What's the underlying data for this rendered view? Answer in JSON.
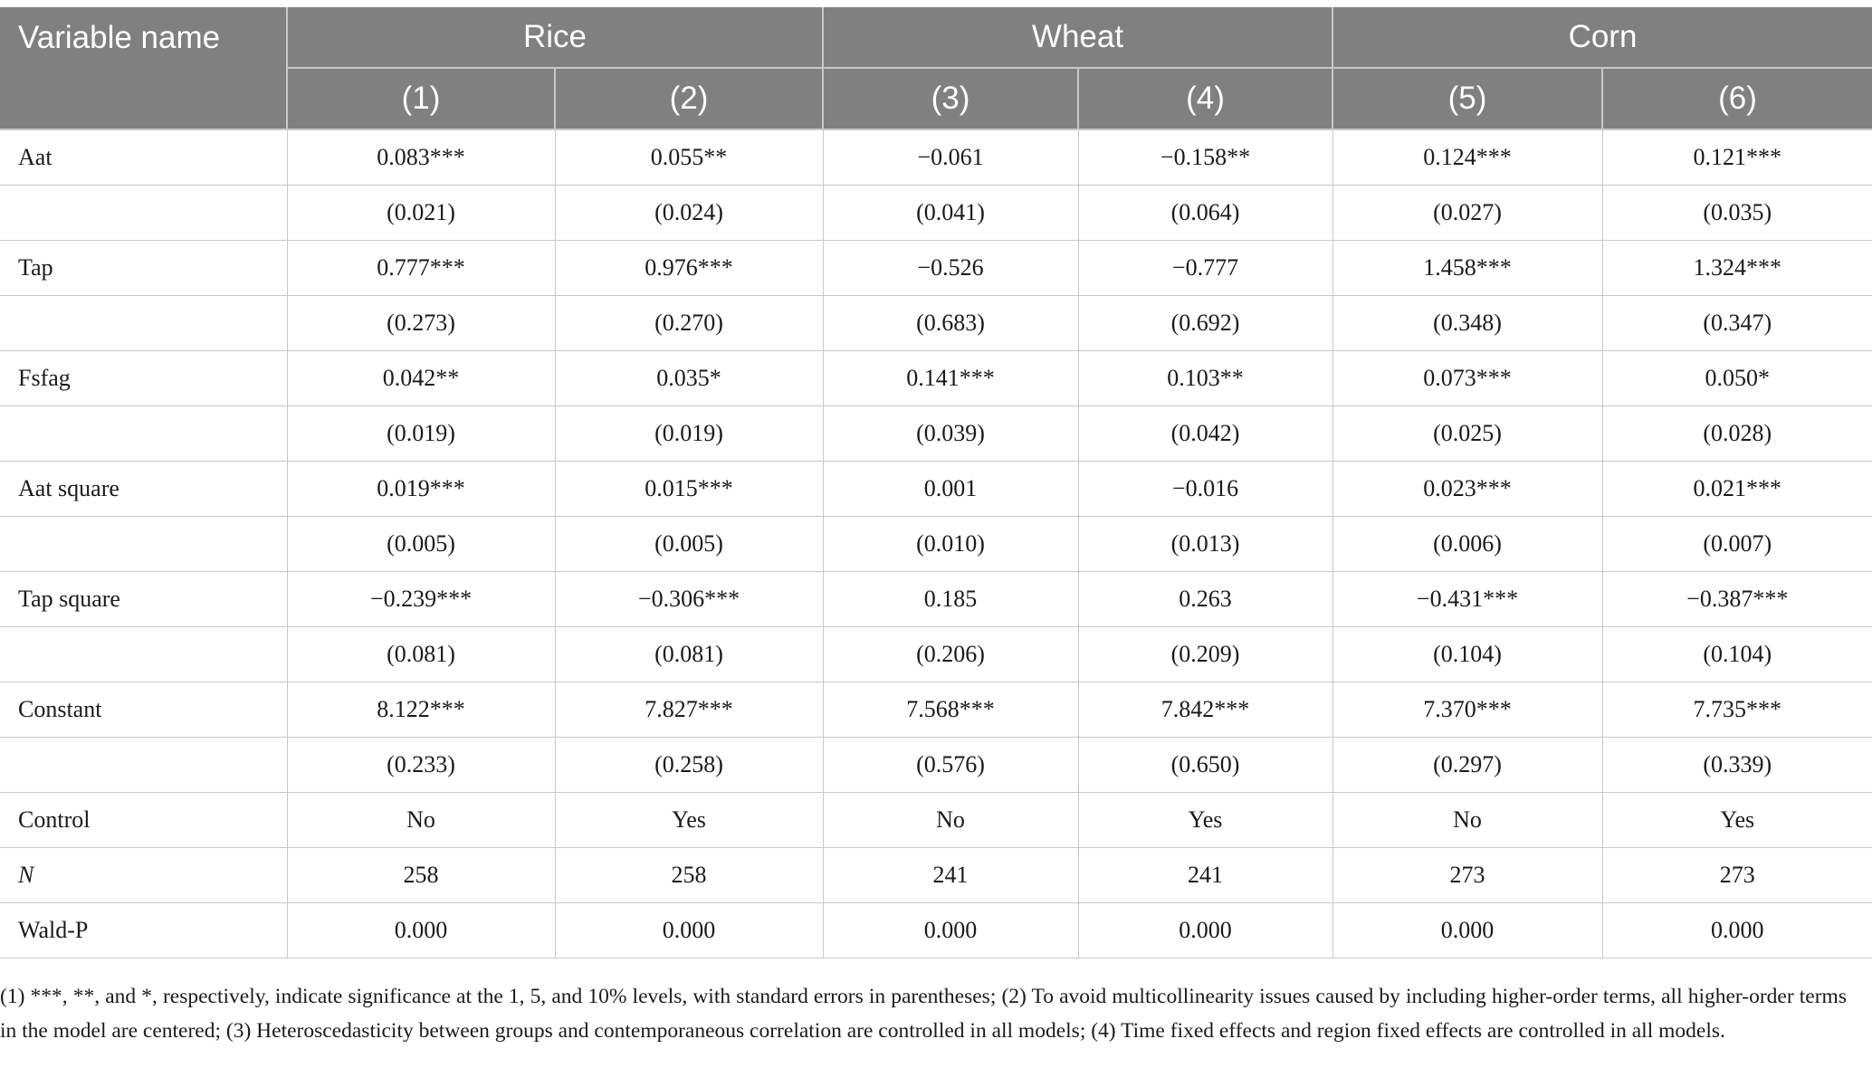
{
  "table": {
    "header_label": "Variable name",
    "groups": [
      {
        "label": "Rice",
        "span": 2
      },
      {
        "label": "Wheat",
        "span": 2
      },
      {
        "label": "Corn",
        "span": 2
      }
    ],
    "columns": [
      "(1)",
      "(2)",
      "(3)",
      "(4)",
      "(5)",
      "(6)"
    ],
    "rows": [
      {
        "label": "Aat",
        "italic": false,
        "cells": [
          "0.083***",
          "0.055**",
          "−0.061",
          "−0.158**",
          "0.124***",
          "0.121***"
        ]
      },
      {
        "label": "",
        "italic": false,
        "cells": [
          "(0.021)",
          "(0.024)",
          "(0.041)",
          "(0.064)",
          "(0.027)",
          "(0.035)"
        ]
      },
      {
        "label": "Tap",
        "italic": false,
        "cells": [
          "0.777***",
          "0.976***",
          "−0.526",
          "−0.777",
          "1.458***",
          "1.324***"
        ]
      },
      {
        "label": "",
        "italic": false,
        "cells": [
          "(0.273)",
          "(0.270)",
          "(0.683)",
          "(0.692)",
          "(0.348)",
          "(0.347)"
        ]
      },
      {
        "label": "Fsfag",
        "italic": false,
        "cells": [
          "0.042**",
          "0.035*",
          "0.141***",
          "0.103**",
          "0.073***",
          "0.050*"
        ]
      },
      {
        "label": "",
        "italic": false,
        "cells": [
          "(0.019)",
          "(0.019)",
          "(0.039)",
          "(0.042)",
          "(0.025)",
          "(0.028)"
        ]
      },
      {
        "label": "Aat square",
        "italic": false,
        "cells": [
          "0.019***",
          "0.015***",
          "0.001",
          "−0.016",
          "0.023***",
          "0.021***"
        ]
      },
      {
        "label": "",
        "italic": false,
        "cells": [
          "(0.005)",
          "(0.005)",
          "(0.010)",
          "(0.013)",
          "(0.006)",
          "(0.007)"
        ]
      },
      {
        "label": "Tap square",
        "italic": false,
        "cells": [
          "−0.239***",
          "−0.306***",
          "0.185",
          "0.263",
          "−0.431***",
          "−0.387***"
        ]
      },
      {
        "label": "",
        "italic": false,
        "cells": [
          "(0.081)",
          "(0.081)",
          "(0.206)",
          "(0.209)",
          "(0.104)",
          "(0.104)"
        ]
      },
      {
        "label": "Constant",
        "italic": false,
        "cells": [
          "8.122***",
          "7.827***",
          "7.568***",
          "7.842***",
          "7.370***",
          "7.735***"
        ]
      },
      {
        "label": "",
        "italic": false,
        "cells": [
          "(0.233)",
          "(0.258)",
          "(0.576)",
          "(0.650)",
          "(0.297)",
          "(0.339)"
        ]
      },
      {
        "label": "Control",
        "italic": false,
        "cells": [
          "No",
          "Yes",
          "No",
          "Yes",
          "No",
          "Yes"
        ]
      },
      {
        "label": "N",
        "italic": true,
        "cells": [
          "258",
          "258",
          "241",
          "241",
          "273",
          "273"
        ]
      },
      {
        "label": "Wald-P",
        "italic": false,
        "cells": [
          "0.000",
          "0.000",
          "0.000",
          "0.000",
          "0.000",
          "0.000"
        ]
      }
    ]
  },
  "notes": "(1) ***, **, and *, respectively, indicate significance at the 1, 5, and 10% levels, with standard errors in parentheses; (2) To avoid multicollinearity issues caused by including higher-order terms, all higher-order terms in the model are centered; (3) Heteroscedasticity between groups and contemporaneous correlation are controlled in all models; (4) Time fixed effects and region fixed effects are controlled in all models."
}
